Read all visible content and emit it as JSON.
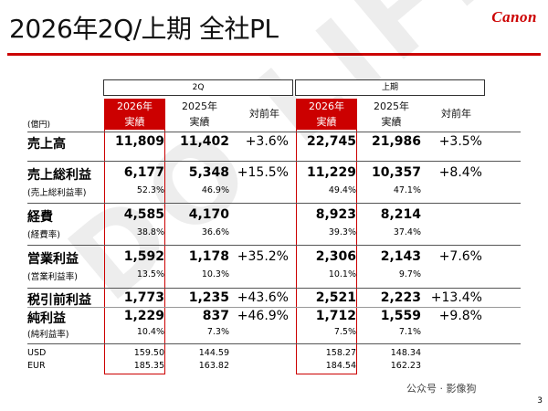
{
  "header": {
    "title": "2026年2Q/上期 全社PL",
    "logo_text": "Canon"
  },
  "watermark": "DO LIFE",
  "unit": "(億円)",
  "sections": {
    "q2": {
      "label": "2Q",
      "cur_year": "2026年",
      "cur_sub": "実績",
      "prev_year": "2025年",
      "prev_sub": "実績",
      "yoy": "対前年"
    },
    "h1": {
      "label": "上期",
      "cur_year": "2026年",
      "cur_sub": "実績",
      "prev_year": "2025年",
      "prev_sub": "実績",
      "yoy": "対前年"
    }
  },
  "rows": [
    {
      "label": "売上高",
      "q2_cur": "11,809",
      "q2_prev": "11,402",
      "q2_yoy": "+3.6%",
      "h1_cur": "22,745",
      "h1_prev": "21,986",
      "h1_yoy": "+3.5%"
    },
    {
      "label": "売上総利益",
      "q2_cur": "6,177",
      "q2_prev": "5,348",
      "q2_yoy": "+15.5%",
      "h1_cur": "11,229",
      "h1_prev": "10,357",
      "h1_yoy": "+8.4%"
    },
    {
      "label": "(売上総利益率)",
      "q2_cur": "52.3%",
      "q2_prev": "46.9%",
      "q2_yoy": "",
      "h1_cur": "49.4%",
      "h1_prev": "47.1%",
      "h1_yoy": ""
    },
    {
      "label": "経費",
      "q2_cur": "4,585",
      "q2_prev": "4,170",
      "q2_yoy": "",
      "h1_cur": "8,923",
      "h1_prev": "8,214",
      "h1_yoy": ""
    },
    {
      "label": "(経費率)",
      "q2_cur": "38.8%",
      "q2_prev": "36.6%",
      "q2_yoy": "",
      "h1_cur": "39.3%",
      "h1_prev": "37.4%",
      "h1_yoy": ""
    },
    {
      "label": "営業利益",
      "q2_cur": "1,592",
      "q2_prev": "1,178",
      "q2_yoy": "+35.2%",
      "h1_cur": "2,306",
      "h1_prev": "2,143",
      "h1_yoy": "+7.6%"
    },
    {
      "label": "(営業利益率)",
      "q2_cur": "13.5%",
      "q2_prev": "10.3%",
      "q2_yoy": "",
      "h1_cur": "10.1%",
      "h1_prev": "9.7%",
      "h1_yoy": ""
    },
    {
      "label": "税引前利益",
      "q2_cur": "1,773",
      "q2_prev": "1,235",
      "q2_yoy": "+43.6%",
      "h1_cur": "2,521",
      "h1_prev": "2,223",
      "h1_yoy": "+13.4%"
    },
    {
      "label": "純利益",
      "q2_cur": "1,229",
      "q2_prev": "837",
      "q2_yoy": "+46.9%",
      "h1_cur": "1,712",
      "h1_prev": "1,559",
      "h1_yoy": "+9.8%"
    },
    {
      "label": "(純利益率)",
      "q2_cur": "10.4%",
      "q2_prev": "7.3%",
      "q2_yoy": "",
      "h1_cur": "7.5%",
      "h1_prev": "7.1%",
      "h1_yoy": ""
    },
    {
      "label": "USD",
      "q2_cur": "159.50",
      "q2_prev": "144.59",
      "q2_yoy": "",
      "h1_cur": "158.27",
      "h1_prev": "148.34",
      "h1_yoy": ""
    },
    {
      "label": "EUR",
      "q2_cur": "185.35",
      "q2_prev": "163.82",
      "q2_yoy": "",
      "h1_cur": "184.54",
      "h1_prev": "162.23",
      "h1_yoy": ""
    }
  ],
  "footer": {
    "wechat": "公众号 · 影像狗",
    "page": "3"
  }
}
